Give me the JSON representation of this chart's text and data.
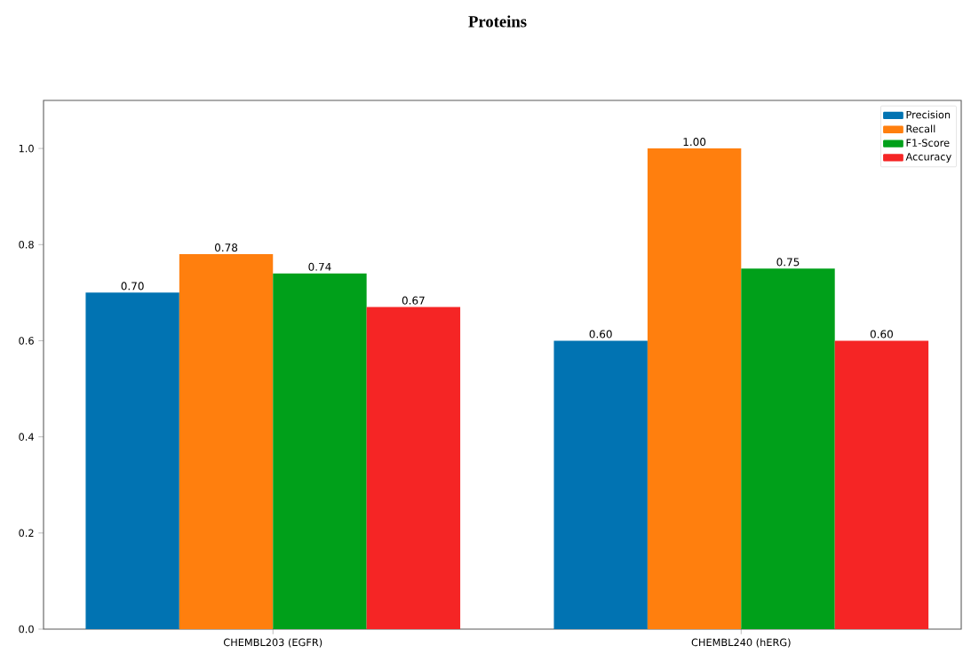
{
  "chart_data": {
    "type": "bar",
    "title": "Proteins",
    "categories": [
      "CHEMBL203 (EGFR)",
      "CHEMBL240 (hERG)"
    ],
    "series": [
      {
        "name": "Precision",
        "color": "#0173b2",
        "values": [
          0.7,
          0.6
        ],
        "value_labels": [
          "0.70",
          "0.60"
        ]
      },
      {
        "name": "Recall",
        "color": "#ff7f0e",
        "values": [
          0.78,
          1.0
        ],
        "value_labels": [
          "0.78",
          "1.00"
        ]
      },
      {
        "name": "F1-Score",
        "color": "#00a01a",
        "values": [
          0.74,
          0.75
        ],
        "value_labels": [
          "0.74",
          "0.75"
        ]
      },
      {
        "name": "Accuracy",
        "color": "#f52525",
        "values": [
          0.67,
          0.6
        ],
        "value_labels": [
          "0.67",
          "0.60"
        ]
      }
    ],
    "ylim": [
      0,
      1.1
    ],
    "yticks": [
      {
        "value": 0,
        "label": "0.0"
      },
      {
        "value": 0.2,
        "label": "0.2"
      },
      {
        "value": 0.4,
        "label": "0.4"
      },
      {
        "value": 0.6,
        "label": "0.6"
      },
      {
        "value": 0.8,
        "label": "0.8"
      },
      {
        "value": 1.0,
        "label": "1.0"
      }
    ],
    "legend": "top right",
    "grid": false
  }
}
